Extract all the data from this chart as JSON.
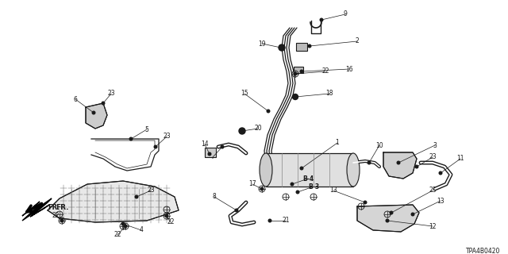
{
  "bg_color": "#ffffff",
  "line_color": "#1a1a1a",
  "fig_width": 6.4,
  "fig_height": 3.2,
  "diagram_code": "TPA4B0420",
  "label_fontsize": 5.5,
  "bold_fontsize": 5.5,
  "lw_main": 1.0,
  "lw_thin": 0.5,
  "lw_pipe": 1.4
}
